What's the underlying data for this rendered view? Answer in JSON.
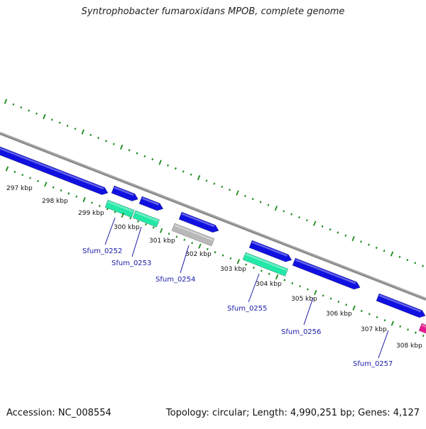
{
  "title": "Syntrophobacter fumaroxidans MPOB, complete genome",
  "footer": {
    "accession": "Accession: NC_008554",
    "summary": "Topology: circular; Length: 4,990,251 bp; Genes: 4,127"
  },
  "colors": {
    "forward_gene": "#1010e0",
    "rna_gene": "#22e8a8",
    "pseudo_gene": "#b8b8b8",
    "magenta_gene": "#e81890",
    "backbone": "#888888",
    "ticks": "#1a8a1a",
    "gene_label": "#1a1aa8"
  },
  "ticks": [
    {
      "label": "297 kbp"
    },
    {
      "label": "298 kbp"
    },
    {
      "label": "299 kbp"
    },
    {
      "label": "300 kbp"
    },
    {
      "label": "301 kbp"
    },
    {
      "label": "302 kbp"
    },
    {
      "label": "303 kbp"
    },
    {
      "label": "304 kbp"
    },
    {
      "label": "305 kbp"
    },
    {
      "label": "306 kbp"
    },
    {
      "label": "307 kbp"
    },
    {
      "label": "308 kbp"
    }
  ],
  "gene_labels": [
    "Sfum_0252",
    "Sfum_0253",
    "Sfum_0254",
    "Sfum_0255",
    "Sfum_0256",
    "Sfum_0257"
  ]
}
